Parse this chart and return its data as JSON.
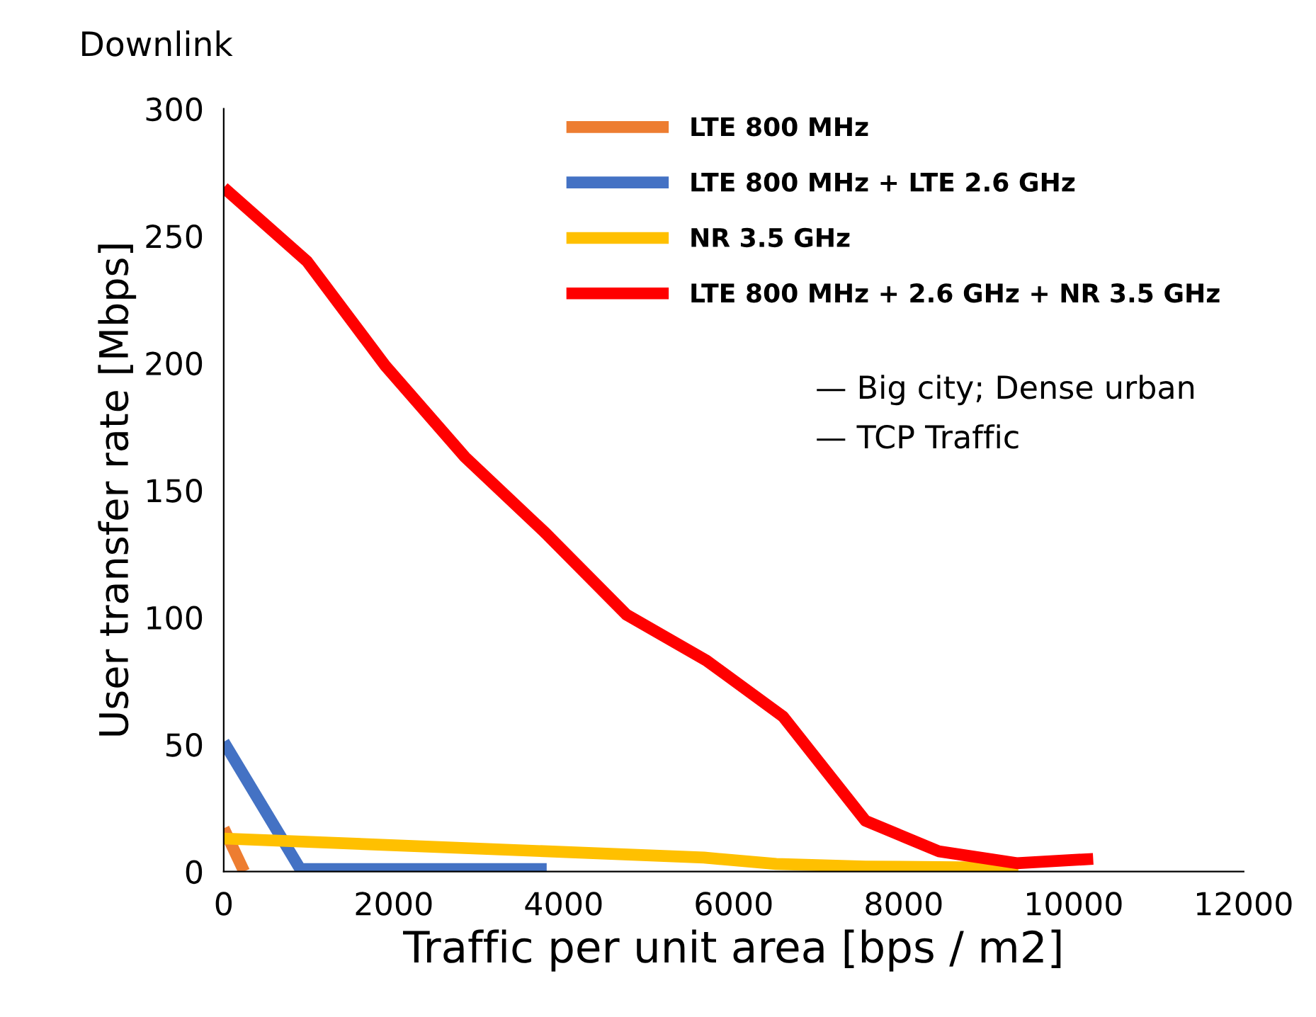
{
  "chart_data": {
    "type": "line",
    "title": "Downlink",
    "xlabel": "Traffic per unit area [bps / m2]",
    "ylabel": "User transfer rate [Mbps]",
    "xlim": [
      0,
      12000
    ],
    "ylim": [
      0,
      300
    ],
    "xticks": [
      0,
      2000,
      4000,
      6000,
      8000,
      10000,
      12000
    ],
    "yticks": [
      0,
      50,
      100,
      150,
      200,
      250,
      300
    ],
    "grid": false,
    "legend": "top right",
    "marker": "none",
    "line_style": "solid",
    "annotations": [
      "— Big city; Dense urban",
      "— TCP Traffic"
    ],
    "series": [
      {
        "name": "LTE 800 MHz",
        "color": "#ed7d31",
        "x": [
          0,
          240
        ],
        "values": [
          17,
          0
        ]
      },
      {
        "name": "LTE 800 MHz + LTE 2.6 GHz",
        "color": "#4472c4",
        "x": [
          0,
          900,
          3800
        ],
        "values": [
          51,
          1,
          1
        ]
      },
      {
        "name": "NR 3.5 GHz",
        "color": "#ffc000",
        "x": [
          0,
          5650,
          6500,
          7550,
          9350
        ],
        "values": [
          13,
          5.5,
          3,
          2,
          1.5
        ]
      },
      {
        "name": "LTE 800 MHz + 2.6 GHz + NR 3.5 GHz",
        "color": "#ff0000",
        "x": [
          0,
          980,
          1900,
          2840,
          3790,
          4740,
          5680,
          6580,
          7550,
          8410,
          9330,
          10230
        ],
        "values": [
          269,
          240,
          199,
          163,
          133,
          101,
          83,
          61,
          20,
          8,
          3.3,
          5
        ]
      }
    ]
  }
}
